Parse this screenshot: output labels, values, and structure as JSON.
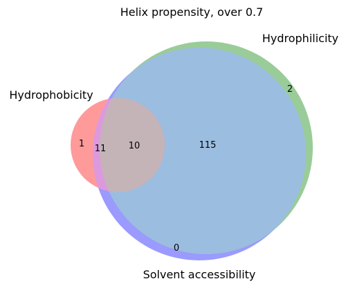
{
  "title": "Helix propensity, over 0.7",
  "sets": [
    {
      "key": "hydrophobicity",
      "label": "Hydrophobicity",
      "color": "#ff9a9a"
    },
    {
      "key": "solvent_accessibility",
      "label": "Solvent accessibility",
      "color": "#9a9aff"
    },
    {
      "key": "hydrophilicity",
      "label": "Hydrophilicity",
      "color": "#99cc99"
    }
  ],
  "regions": {
    "hydrophobicity_only": "1",
    "hydrophobicity_and_solvent_accessibility": "11",
    "all_three": "10",
    "solvent_accessibility_and_hydrophilicity": "115",
    "hydrophilicity_only": "2",
    "solvent_accessibility_only": "0"
  },
  "colors": {
    "hydrophobicity_only": "#ff9a9a",
    "hydrophobicity_and_solvent_accessibility": "#dd99dd",
    "all_three": "#c4b4b8",
    "solvent_accessibility_and_hydrophilicity": "#9bbde0",
    "hydrophilicity_only": "#99cc99",
    "solvent_accessibility_only": "#9a9aff"
  }
}
